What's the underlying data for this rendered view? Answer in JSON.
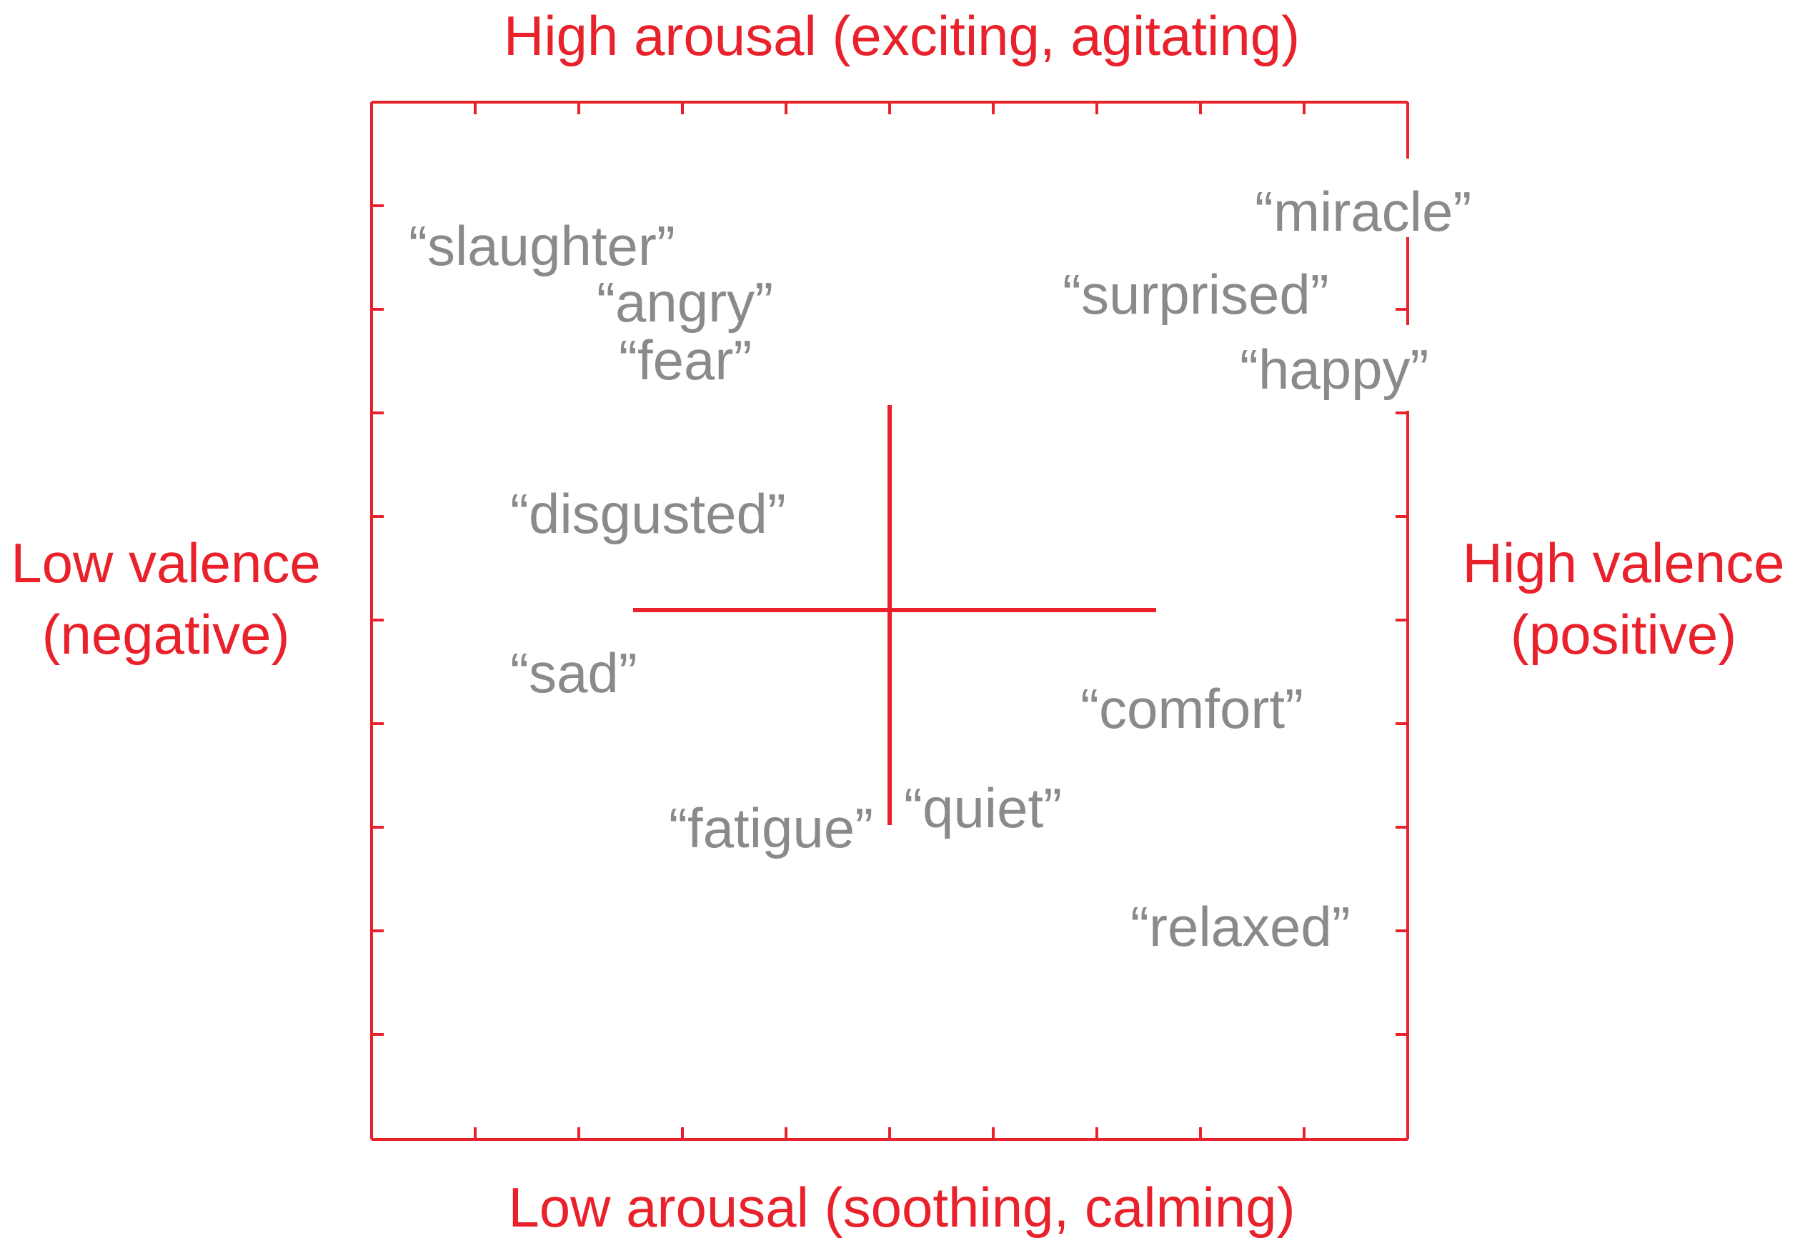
{
  "axes": {
    "top_label": "High arousal (exciting, agitating)",
    "bottom_label": "Low arousal (soothing, calming)",
    "left_label_line1": "Low valence",
    "left_label_line2": "(negative)",
    "right_label_line1": "High valence",
    "right_label_line2": "(positive)"
  },
  "words": [
    {
      "text": "“slaughter”"
    },
    {
      "text": "“angry”"
    },
    {
      "text": "“fear”"
    },
    {
      "text": "“disgusted”"
    },
    {
      "text": "“sad”"
    },
    {
      "text": "“fatigue”"
    },
    {
      "text": "“quiet”"
    },
    {
      "text": "“comfort”"
    },
    {
      "text": "“relaxed”"
    },
    {
      "text": "“surprised”"
    },
    {
      "text": "“happy”"
    },
    {
      "text": "“miracle”"
    }
  ],
  "colors": {
    "frame": "#e8212b",
    "words": "#8a8a8a"
  }
}
